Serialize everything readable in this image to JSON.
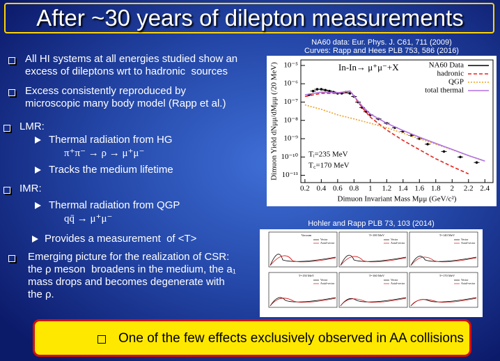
{
  "title": "After ~30 years of dilepton measurements",
  "bullets": [
    {
      "lines": [
        "All HI systems at all energies studied show an",
        "excess of dileptons wrt to hadronic  sources"
      ]
    },
    {
      "lines": [
        "Excess consistently reproduced by",
        "microscopic many body model (Rapp et al.)"
      ]
    },
    {
      "lines": [
        "LMR:"
      ],
      "sub": [
        {
          "text": "Thermal radiation from HG",
          "formula": "π⁺π⁻ → ρ → μ⁺μ⁻"
        },
        {
          "text": "Tracks the medium lifetime"
        }
      ]
    },
    {
      "lines": [
        "IMR:"
      ],
      "sub": [
        {
          "text": "Thermal radiation from QGP",
          "formula": "qq̄ → μ⁺μ⁻"
        },
        {
          "text": "Provides a measurement  of <T>"
        }
      ]
    },
    {
      "lines": [
        "Emerging picture for the realization of CSR:",
        "the ρ meson  broadens in the medium, the a₁",
        "mass drops and becomes degenerate with",
        "the ρ."
      ]
    }
  ],
  "main_plot": {
    "type": "line",
    "references": [
      "NA60 data: Eur. Phys. J. C61, 711 (2009)",
      "Curves: Rapp and Hees PLB 753, 586 (2016)"
    ],
    "x_label": "Dimuon Invariant Mass Mμμ (GeV/c²)",
    "y_label": "Dimuon Yield dNμμ/dMμμ (/20 MeV)",
    "annotations": [
      "In-In→ μ⁺μ⁻+X",
      "Tᵢ=235 MeV",
      "T꜀=170 MeV"
    ],
    "xlim": [
      0.15,
      2.5
    ],
    "xticks": [
      0.2,
      0.4,
      0.6,
      0.8,
      1,
      1.2,
      1.4,
      1.6,
      1.8,
      2,
      2.2,
      2.4
    ],
    "ylim": [
      4e-12,
      2e-05
    ],
    "log_y": true,
    "yticks": [
      {
        "value": 1e-05,
        "label": "10⁻⁵"
      },
      {
        "value": 1e-06,
        "label": "10⁻⁶"
      },
      {
        "value": 1e-07,
        "label": "10⁻⁷"
      },
      {
        "value": 1e-08,
        "label": "10⁻⁸"
      },
      {
        "value": 1e-09,
        "label": "10⁻⁹"
      },
      {
        "value": 1e-10,
        "label": "10⁻¹⁰"
      },
      {
        "value": 1e-11,
        "label": "10⁻¹¹"
      }
    ],
    "legend": "upper right",
    "series": [
      {
        "name": "NA60 Data",
        "color": "#000000",
        "style": "points",
        "x": [
          0.25,
          0.3,
          0.35,
          0.4,
          0.45,
          0.5,
          0.55,
          0.6,
          0.65,
          0.7,
          0.75,
          0.8,
          0.85,
          0.9,
          0.95,
          1.0,
          1.1,
          1.2,
          1.3,
          1.4,
          1.5,
          1.6,
          1.7,
          1.9,
          2.1,
          2.3
        ],
        "values": [
          2.5e-07,
          4e-07,
          5e-07,
          5e-07,
          4.5e-07,
          4e-07,
          3.5e-07,
          3e-07,
          3e-07,
          3.5e-07,
          3e-07,
          2e-07,
          1e-07,
          5e-08,
          3e-08,
          2e-08,
          1.2e-08,
          7e-09,
          4e-09,
          2.5e-09,
          1.5e-09,
          1e-09,
          5e-10,
          2e-10,
          1e-10,
          5e-11
        ]
      },
      {
        "name": "hadronic",
        "color": "#e8201a",
        "style": "dashed",
        "x": [
          0.2,
          0.4,
          0.6,
          0.75,
          0.9,
          1.0,
          1.2,
          1.4,
          1.6,
          1.8,
          2.0,
          2.2
        ],
        "values": [
          2e-07,
          3e-07,
          3e-07,
          4e-07,
          5e-08,
          1.5e-08,
          3e-09,
          8e-10,
          2.5e-10,
          8e-11,
          3e-11,
          1.2e-11
        ]
      },
      {
        "name": "QGP",
        "color": "#f0a020",
        "style": "dotted",
        "x": [
          0.2,
          0.4,
          0.6,
          0.8,
          1.0,
          1.2,
          1.4,
          1.6,
          1.8,
          2.0,
          2.2,
          2.4
        ],
        "values": [
          7e-08,
          4e-08,
          2e-08,
          1.2e-08,
          7e-09,
          4e-09,
          2e-09,
          1e-09,
          5e-10,
          2.5e-10,
          1.2e-10,
          6e-11
        ]
      },
      {
        "name": "total thermal",
        "color": "#b070e0",
        "style": "solid",
        "x": [
          0.2,
          0.4,
          0.6,
          0.75,
          0.9,
          1.0,
          1.2,
          1.4,
          1.6,
          1.8,
          2.0,
          2.2,
          2.4
        ],
        "values": [
          2.5e-07,
          3.5e-07,
          3.2e-07,
          4e-07,
          6e-08,
          2.2e-08,
          7e-09,
          2.8e-09,
          1.2e-09,
          5.5e-10,
          2.6e-10,
          1.2e-10,
          6e-11
        ]
      }
    ]
  },
  "small_figure": {
    "reference": "Hohler and Rapp PLB 73, 103 (2014)",
    "panels": [
      "Vacuum",
      "T=100 MeV",
      "T=140 MeV",
      "T=150 MeV",
      "T=160 MeV",
      "T=170 MeV"
    ],
    "legend": [
      "Vector",
      "Axial-vector"
    ]
  },
  "bottom_box": "One of the few effects exclusively observed in AA collisions"
}
